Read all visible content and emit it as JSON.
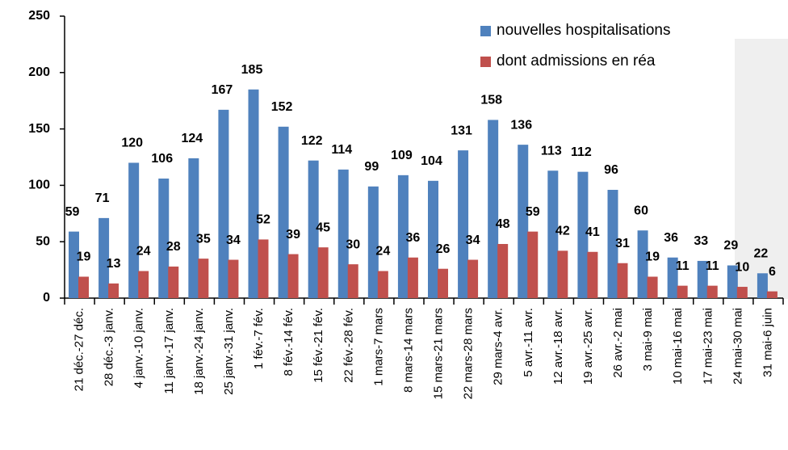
{
  "chart_data": {
    "type": "bar",
    "categories": [
      "21 déc.-27 déc.",
      "28 déc.-3 janv.",
      "4 janv.-10 janv.",
      "11 janv.-17 janv.",
      "18 janv.-24 janv.",
      "25 janv.-31 janv.",
      "1 fév.-7 fév.",
      "8 fév.-14 fév.",
      "15 fév.-21 fév.",
      "22 fév.-28 fév.",
      "1 mars-7 mars",
      "8 mars-14 mars",
      "15 mars-21 mars",
      "22 mars-28 mars",
      "29 mars-4 avr.",
      "5 avr.-11 avr.",
      "12 avr.-18 avr.",
      "19 avr.-25 avr.",
      "26 avr.-2 mai",
      "3 mai-9 mai",
      "10 mai-16 mai",
      "17 mai-23 mai",
      "24 mai-30 mai",
      "31 mai-6 juin"
    ],
    "series": [
      {
        "name": "nouvelles hospitalisations",
        "color": "#4f81bd",
        "values": [
          59,
          71,
          120,
          106,
          124,
          167,
          185,
          152,
          122,
          114,
          99,
          109,
          104,
          131,
          158,
          136,
          113,
          112,
          96,
          60,
          36,
          33,
          29,
          22
        ]
      },
      {
        "name": "dont admissions en réa",
        "color": "#c0504d",
        "values": [
          19,
          13,
          24,
          28,
          35,
          34,
          52,
          39,
          45,
          30,
          24,
          36,
          26,
          34,
          48,
          59,
          42,
          41,
          31,
          19,
          11,
          11,
          10,
          6
        ]
      }
    ],
    "ylim": [
      0,
      250
    ],
    "yticks": [
      0,
      50,
      100,
      150,
      200,
      250
    ],
    "legend": "upper right"
  }
}
